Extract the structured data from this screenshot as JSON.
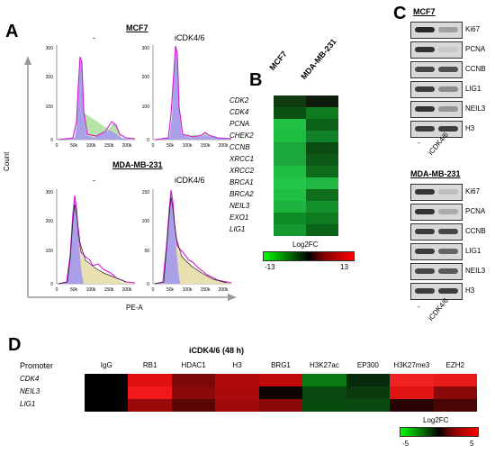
{
  "panels": {
    "a": "A",
    "b": "B",
    "c": "C",
    "d": "D"
  },
  "panel_a": {
    "cell_lines": [
      "MCF7",
      "MDA-MB-231"
    ],
    "conditions": [
      "-",
      "iCDK4/6"
    ],
    "ylabel": "Count",
    "xlabel": "PE-A",
    "ticks": {
      "left_y": [
        "300",
        "200",
        "100",
        "0"
      ],
      "right_y": [
        "300",
        "200",
        "100",
        "0"
      ],
      "mda_left_y": [
        "300",
        "200",
        "100",
        "0"
      ],
      "mda_right_y": [
        "150",
        "100",
        "50",
        "0"
      ],
      "x": [
        "0",
        "50k",
        "100k",
        "150k",
        "200k"
      ],
      "x_right": [
        "0",
        "50k",
        "100k",
        "150k",
        "200k"
      ]
    }
  },
  "panel_b": {
    "columns": [
      "MCF7",
      "MDA-MB-231"
    ],
    "genes": [
      "CDK2",
      "CDK4",
      "PCNA",
      "CHEK2",
      "CCNB",
      "XRCC1",
      "XRCC2",
      "BRCA1",
      "BRCA2",
      "NEIL3",
      "EXO1",
      "LIG1"
    ],
    "colors": [
      [
        "#0f3a10",
        "#0d1a0c"
      ],
      [
        "#0b4f12",
        "#0e7b1f"
      ],
      [
        "#1fc246",
        "#0c6118"
      ],
      [
        "#1dbd3f",
        "#11812a"
      ],
      [
        "#19a839",
        "#0b4c12"
      ],
      [
        "#1ca83d",
        "#0c5a15"
      ],
      [
        "#1fbf45",
        "#0e6d1c"
      ],
      [
        "#22c74a",
        "#20b842"
      ],
      [
        "#1fc044",
        "#0f6f1d"
      ],
      [
        "#1cb43f",
        "#14902c"
      ],
      [
        "#0e8a25",
        "#0f7b21"
      ],
      [
        "#159a32",
        "#0c6418"
      ]
    ],
    "legend_title": "Log2FC",
    "legend_min": "-13",
    "legend_max": "13"
  },
  "panel_c": {
    "groups": [
      {
        "name": "MCF7",
        "proteins": [
          "Ki67",
          "PCNA",
          "CCNB",
          "LIG1",
          "NEIL3",
          "H3"
        ],
        "lane_labels": [
          "-",
          "iCDK4/6"
        ],
        "intensity": [
          [
            0.85,
            0.25
          ],
          [
            0.8,
            0.05
          ],
          [
            0.7,
            0.65
          ],
          [
            0.75,
            0.35
          ],
          [
            0.8,
            0.3
          ],
          [
            0.75,
            0.75
          ]
        ]
      },
      {
        "name": "MDA-MB-231",
        "proteins": [
          "Ki67",
          "PCNA",
          "CCNB",
          "LIG1",
          "NEIL3",
          "H3"
        ],
        "lane_labels": [
          "-",
          "iCDK4/6"
        ],
        "intensity": [
          [
            0.8,
            0.1
          ],
          [
            0.8,
            0.2
          ],
          [
            0.75,
            0.7
          ],
          [
            0.75,
            0.55
          ],
          [
            0.7,
            0.6
          ],
          [
            0.75,
            0.75
          ]
        ]
      }
    ]
  },
  "panel_d": {
    "title": "iCDK4/6 (48 h)",
    "header": "Promoter",
    "columns": [
      "IgG",
      "RB1",
      "HDAC1",
      "H3",
      "BRG1",
      "H3K27ac",
      "EP300",
      "H3K27me3",
      "EZH2"
    ],
    "rows": [
      "CDK4",
      "NEIL3",
      "LIG1"
    ],
    "colors": [
      [
        "#000000",
        "#e01010",
        "#7a0808",
        "#b00a0a",
        "#c10a0a",
        "#0a7a15",
        "#082a0c",
        "#ee2222",
        "#e81a1a"
      ],
      [
        "#000000",
        "#f01818",
        "#8a0a0a",
        "#aa0a0a",
        "#100404",
        "#0a4a10",
        "#0a3a0e",
        "#e01212",
        "#8a0a0a"
      ],
      [
        "#000000",
        "#9a0a0a",
        "#5a0606",
        "#a00a0a",
        "#8a0808",
        "#064a0d",
        "#0a4a10",
        "#2a0404",
        "#4a0505"
      ]
    ],
    "legend_title": "Log2FC",
    "legend_min": "-5",
    "legend_max": "5"
  }
}
